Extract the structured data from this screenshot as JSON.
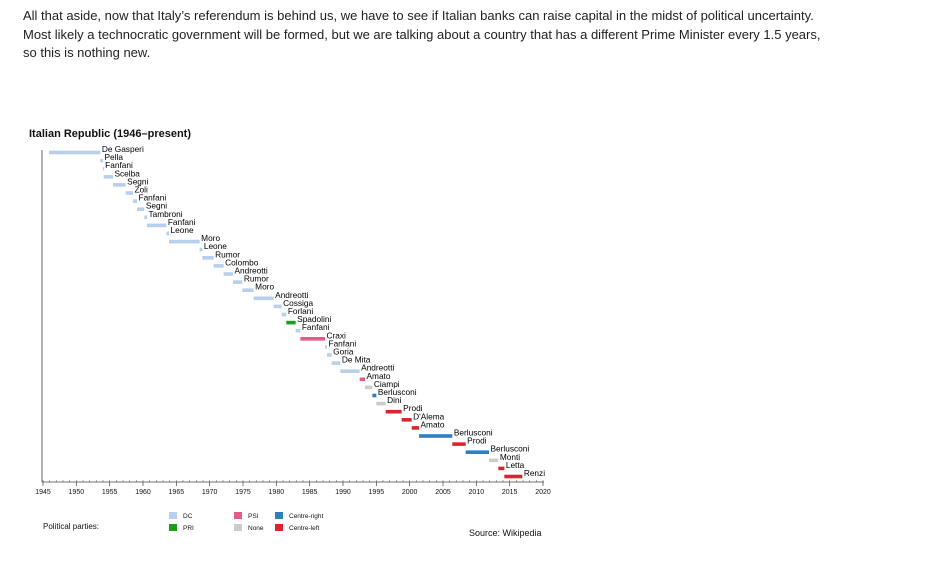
{
  "article": {
    "paragraph": "All that aside, now that Italy’s referendum is behind us, we have to see if Italian banks can raise capital in the midst of political uncertainty.  Most likely a technocratic government will be formed, but we are talking about a country that has a different Prime Minister every 1.5 years, so this is nothing new."
  },
  "legend": {
    "title": "Political parties:",
    "items": [
      {
        "key": "DC",
        "label": "DC",
        "color": "#b8cfee"
      },
      {
        "key": "PRI",
        "label": "PRI",
        "color": "#1a9e1a"
      },
      {
        "key": "PSI",
        "label": "PSI",
        "color": "#e45a8a"
      },
      {
        "key": "None",
        "label": "None",
        "color": "#cccccc"
      },
      {
        "key": "Centre-right",
        "label": "Centre-right",
        "color": "#2f7fbf"
      },
      {
        "key": "Centre-left",
        "label": "Centre-left",
        "color": "#d7262e"
      }
    ]
  },
  "source": "Source: Wikipedia",
  "chart_data": {
    "type": "bar",
    "subtype": "timeline",
    "title": "Italian Republic (1946–present)",
    "xlabel": "",
    "ylabel": "",
    "xlim": [
      1945,
      2020
    ],
    "x_ticks": [
      1945,
      1950,
      1955,
      1960,
      1965,
      1970,
      1975,
      1980,
      1985,
      1990,
      1995,
      2000,
      2005,
      2010,
      2015,
      2020
    ],
    "grid": false,
    "legend_position": "bottom",
    "series": [
      {
        "name": "De Gasperi",
        "party": "DC",
        "start": 1945.9,
        "end": 1953.6
      },
      {
        "name": "Pella",
        "party": "DC",
        "start": 1953.6,
        "end": 1954.0
      },
      {
        "name": "Fanfani",
        "party": "DC",
        "start": 1954.0,
        "end": 1954.1
      },
      {
        "name": "Scelba",
        "party": "DC",
        "start": 1954.1,
        "end": 1955.5
      },
      {
        "name": "Segni",
        "party": "DC",
        "start": 1955.5,
        "end": 1957.4
      },
      {
        "name": "Zoli",
        "party": "DC",
        "start": 1957.4,
        "end": 1958.5
      },
      {
        "name": "Fanfani",
        "party": "DC",
        "start": 1958.5,
        "end": 1959.1
      },
      {
        "name": "Segni",
        "party": "DC",
        "start": 1959.1,
        "end": 1960.2
      },
      {
        "name": "Tambroni",
        "party": "DC",
        "start": 1960.2,
        "end": 1960.6
      },
      {
        "name": "Fanfani",
        "party": "DC",
        "start": 1960.6,
        "end": 1963.5
      },
      {
        "name": "Leone",
        "party": "DC",
        "start": 1963.5,
        "end": 1963.9
      },
      {
        "name": "Moro",
        "party": "DC",
        "start": 1963.9,
        "end": 1968.5
      },
      {
        "name": "Leone",
        "party": "DC",
        "start": 1968.5,
        "end": 1968.9
      },
      {
        "name": "Rumor",
        "party": "DC",
        "start": 1968.9,
        "end": 1970.6
      },
      {
        "name": "Colombo",
        "party": "DC",
        "start": 1970.6,
        "end": 1972.1
      },
      {
        "name": "Andreotti",
        "party": "DC",
        "start": 1972.1,
        "end": 1973.5
      },
      {
        "name": "Rumor",
        "party": "DC",
        "start": 1973.5,
        "end": 1974.9
      },
      {
        "name": "Moro",
        "party": "DC",
        "start": 1974.9,
        "end": 1976.6
      },
      {
        "name": "Andreotti",
        "party": "DC",
        "start": 1976.6,
        "end": 1979.6
      },
      {
        "name": "Cossiga",
        "party": "DC",
        "start": 1979.6,
        "end": 1980.8
      },
      {
        "name": "Forlani",
        "party": "DC",
        "start": 1980.8,
        "end": 1981.5
      },
      {
        "name": "Spadolini",
        "party": "PRI",
        "start": 1981.5,
        "end": 1982.9
      },
      {
        "name": "Fanfani",
        "party": "DC",
        "start": 1982.9,
        "end": 1983.6
      },
      {
        "name": "Craxi",
        "party": "PSI",
        "start": 1983.6,
        "end": 1987.3
      },
      {
        "name": "Fanfani",
        "party": "DC",
        "start": 1987.3,
        "end": 1987.6
      },
      {
        "name": "Goria",
        "party": "DC",
        "start": 1987.6,
        "end": 1988.3
      },
      {
        "name": "De Mita",
        "party": "DC",
        "start": 1988.3,
        "end": 1989.6
      },
      {
        "name": "Andreotti",
        "party": "DC",
        "start": 1989.6,
        "end": 1992.5
      },
      {
        "name": "Amato",
        "party": "PSI",
        "start": 1992.5,
        "end": 1993.3
      },
      {
        "name": "Ciampi",
        "party": "None",
        "start": 1993.3,
        "end": 1994.4
      },
      {
        "name": "Berlusconi",
        "party": "Centre-right",
        "start": 1994.4,
        "end": 1995.0
      },
      {
        "name": "Dini",
        "party": "None",
        "start": 1995.0,
        "end": 1996.4
      },
      {
        "name": "Prodi",
        "party": "Centre-left",
        "start": 1996.4,
        "end": 1998.8
      },
      {
        "name": "D'Alema",
        "party": "Centre-left",
        "start": 1998.8,
        "end": 2000.3
      },
      {
        "name": "Amato",
        "party": "Centre-left",
        "start": 2000.3,
        "end": 2001.4
      },
      {
        "name": "Berlusconi",
        "party": "Centre-right",
        "start": 2001.4,
        "end": 2006.4
      },
      {
        "name": "Prodi",
        "party": "Centre-left",
        "start": 2006.4,
        "end": 2008.4
      },
      {
        "name": "Berlusconi",
        "party": "Centre-right",
        "start": 2008.4,
        "end": 2011.9
      },
      {
        "name": "Monti",
        "party": "None",
        "start": 2011.9,
        "end": 2013.3
      },
      {
        "name": "Letta",
        "party": "Centre-left",
        "start": 2013.3,
        "end": 2014.2
      },
      {
        "name": "Renzi",
        "party": "Centre-left",
        "start": 2014.2,
        "end": 2016.9
      }
    ]
  }
}
